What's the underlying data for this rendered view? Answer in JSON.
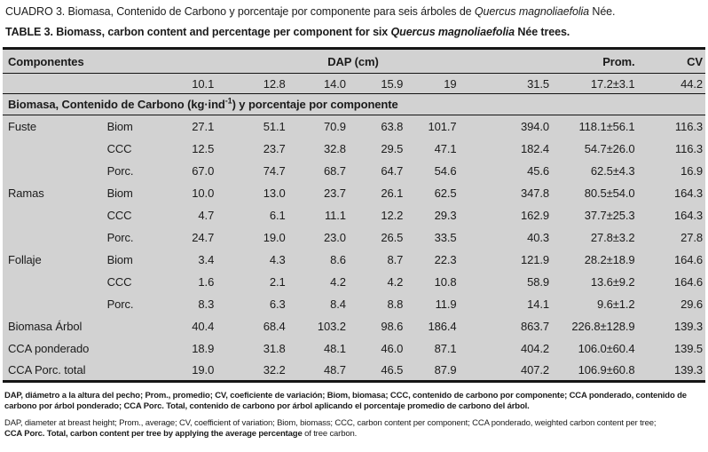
{
  "caption": {
    "es": {
      "prefix": "CUADRO 3. Biomasa, Contenido de Carbono y porcentaje por componente para seis árboles de ",
      "species": "Quercus magnoliaefolia",
      "suffix": " Née."
    },
    "en": {
      "prefix": "TABLE 3. Biomass, carbon content and percentage per component for six ",
      "species": "Quercus magnoliaefolia",
      "suffix": " Née trees."
    }
  },
  "table": {
    "header": {
      "components": "Componentes",
      "dap": "DAP (cm)",
      "prom": "Prom.",
      "cv": "CV"
    },
    "dap_row": {
      "values": [
        "10.1",
        "12.8",
        "14.0",
        "15.9",
        "19",
        "31.5"
      ],
      "prom": "17.2±3.1",
      "cv": "44.2"
    },
    "section": {
      "pre": "Biomasa, Contenido de Carbono (kg·ind",
      "sup": "-1",
      "post": ") y porcentaje por componente"
    },
    "rows": [
      {
        "component": "Fuste",
        "metric": "Biom",
        "values": [
          "27.1",
          "51.1",
          "70.9",
          "63.8",
          "101.7",
          "394.0"
        ],
        "prom": "118.1±56.1",
        "cv": "116.3"
      },
      {
        "component": "",
        "metric": "CCC",
        "values": [
          "12.5",
          "23.7",
          "32.8",
          "29.5",
          "47.1",
          "182.4"
        ],
        "prom": "54.7±26.0",
        "cv": "116.3"
      },
      {
        "component": "",
        "metric": "Porc.",
        "values": [
          "67.0",
          "74.7",
          "68.7",
          "64.7",
          "54.6",
          "45.6"
        ],
        "prom": "62.5±4.3",
        "cv": "16.9"
      },
      {
        "component": "Ramas",
        "metric": "Biom",
        "values": [
          "10.0",
          "13.0",
          "23.7",
          "26.1",
          "62.5",
          "347.8"
        ],
        "prom": "80.5±54.0",
        "cv": "164.3"
      },
      {
        "component": "",
        "metric": "CCC",
        "values": [
          "4.7",
          "6.1",
          "11.1",
          "12.2",
          "29.3",
          "162.9"
        ],
        "prom": "37.7±25.3",
        "cv": "164.3"
      },
      {
        "component": "",
        "metric": "Porc.",
        "values": [
          "24.7",
          "19.0",
          "23.0",
          "26.5",
          "33.5",
          "40.3"
        ],
        "prom": "27.8±3.2",
        "cv": "27.8"
      },
      {
        "component": "Follaje",
        "metric": "Biom",
        "values": [
          "3.4",
          "4.3",
          "8.6",
          "8.7",
          "22.3",
          "121.9"
        ],
        "prom": "28.2±18.9",
        "cv": "164.6"
      },
      {
        "component": "",
        "metric": "CCC",
        "values": [
          "1.6",
          "2.1",
          "4.2",
          "4.2",
          "10.8",
          "58.9"
        ],
        "prom": "13.6±9.2",
        "cv": "164.6"
      },
      {
        "component": "",
        "metric": "Porc.",
        "values": [
          "8.3",
          "6.3",
          "8.4",
          "8.8",
          "11.9",
          "14.1"
        ],
        "prom": "9.6±1.2",
        "cv": "29.6"
      }
    ],
    "summary_rows": [
      {
        "label": "Biomasa Árbol",
        "values": [
          "40.4",
          "68.4",
          "103.2",
          "98.6",
          "186.4",
          "863.7"
        ],
        "prom": "226.8±128.9",
        "cv": "139.3"
      },
      {
        "label": "CCA ponderado",
        "values": [
          "18.9",
          "31.8",
          "48.1",
          "46.0",
          "87.1",
          "404.2"
        ],
        "prom": "106.0±60.4",
        "cv": "139.5"
      },
      {
        "label": "CCA Porc. total",
        "values": [
          "19.0",
          "32.2",
          "48.7",
          "46.5",
          "87.9",
          "407.2"
        ],
        "prom": "106.9±60.8",
        "cv": "139.3"
      }
    ]
  },
  "footnotes": {
    "es": "DAP, diámetro a la altura del pecho; Prom., promedio; CV, coeficiente de variación; Biom, biomasa; CCC, contenido de carbono por componente; CCA ponderado, contenido de carbono por árbol ponderado; CCA Porc. Total, contenido de carbono por árbol aplicando el porcentaje promedio de carbono del árbol.",
    "en_line1": "DAP, diameter at breast height; Prom., average; CV, coefficient of variation; Biom, biomass; CCC, carbon content per component; CCA ponderado, weighted carbon content per tree;",
    "en_line2_bold": "CCA Porc. Total, carbon content per tree by applying the average percentage ",
    "en_line2_regular": "of tree carbon."
  },
  "colors": {
    "table_bg": "#d2d2d2",
    "rule": "#151515",
    "text": "#1b1b1b"
  }
}
